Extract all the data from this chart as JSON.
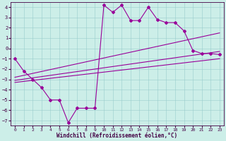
{
  "xlabel": "Windchill (Refroidissement éolien,°C)",
  "background_color": "#cceee8",
  "line_color": "#990099",
  "xlim": [
    -0.5,
    23.5
  ],
  "ylim": [
    -7.5,
    4.5
  ],
  "yticks": [
    -7,
    -6,
    -5,
    -4,
    -3,
    -2,
    -1,
    0,
    1,
    2,
    3,
    4
  ],
  "xticks": [
    0,
    1,
    2,
    3,
    4,
    5,
    6,
    7,
    8,
    9,
    10,
    11,
    12,
    13,
    14,
    15,
    16,
    17,
    18,
    19,
    20,
    21,
    22,
    23
  ],
  "series": [
    [
      0,
      -1.0
    ],
    [
      1,
      -2.2
    ],
    [
      2,
      -3.0
    ],
    [
      3,
      -3.8
    ],
    [
      4,
      -5.0
    ],
    [
      5,
      -5.0
    ],
    [
      6,
      -7.2
    ],
    [
      7,
      -5.8
    ],
    [
      8,
      -5.8
    ],
    [
      9,
      -5.8
    ],
    [
      10,
      4.2
    ],
    [
      11,
      3.5
    ],
    [
      12,
      4.2
    ],
    [
      13,
      2.7
    ],
    [
      14,
      2.7
    ],
    [
      15,
      4.0
    ],
    [
      16,
      2.8
    ],
    [
      17,
      2.5
    ],
    [
      18,
      2.5
    ],
    [
      19,
      1.7
    ],
    [
      20,
      -0.2
    ],
    [
      21,
      -0.5
    ],
    [
      22,
      -0.5
    ],
    [
      23,
      -0.6
    ]
  ],
  "reg_line1": [
    0,
    -2.8,
    23,
    1.5
  ],
  "reg_line2": [
    0,
    -3.1,
    23,
    -0.3
  ],
  "reg_line3": [
    0,
    -3.3,
    23,
    -1.0
  ],
  "xlabel_fontsize": 5.5,
  "tick_fontsize": 4.5,
  "marker_size": 2.0,
  "line_width": 0.8
}
